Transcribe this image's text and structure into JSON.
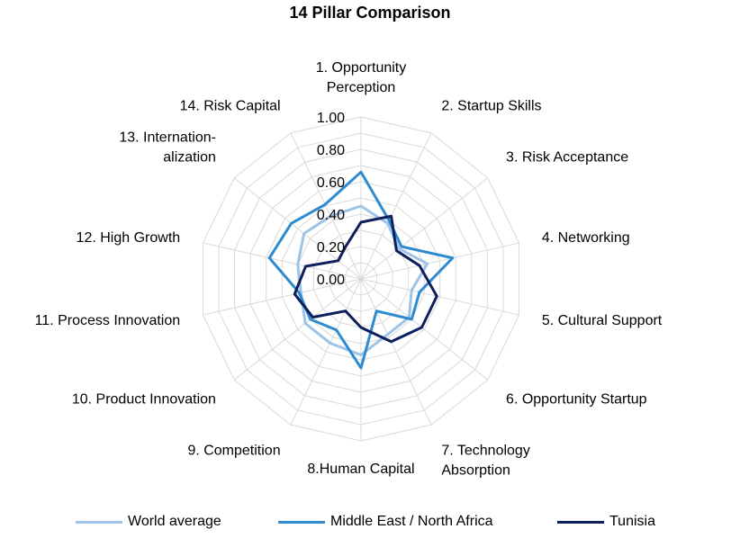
{
  "chart_data": {
    "type": "radar",
    "title": "14 Pillar Comparison",
    "axes": [
      "1. Opportunity Perception",
      "2. Startup Skills",
      "3. Risk Acceptance",
      "4. Networking",
      "5. Cultural Support",
      "6. Opportunity Startup",
      "7. Technology Absorption",
      "8.Human Capital",
      "9. Competition",
      "10. Product Innovation",
      "11. Process Innovation",
      "12. High Growth",
      "13. Internationalization",
      "14. Risk Capital"
    ],
    "axis_label_lines": [
      [
        "1. Opportunity",
        "Perception"
      ],
      [
        "2. Startup Skills"
      ],
      [
        "3. Risk Acceptance"
      ],
      [
        "4. Networking"
      ],
      [
        "5. Cultural Support"
      ],
      [
        "6. Opportunity Startup"
      ],
      [
        "7. Technology",
        "Absorption"
      ],
      [
        "8.Human Capital"
      ],
      [
        "9. Competition"
      ],
      [
        "10. Product Innovation"
      ],
      [
        "11. Process Innovation"
      ],
      [
        "12. High Growth"
      ],
      [
        "13. Internation-",
        "alization"
      ],
      [
        "14. Risk Capital"
      ]
    ],
    "radial_ticks": [
      "0.00",
      "0.20",
      "0.40",
      "0.60",
      "0.80",
      "1.00"
    ],
    "rlim": [
      0,
      1
    ],
    "grid": true,
    "legend_position": "bottom",
    "series": [
      {
        "name": "World average",
        "color": "#9dc3e6",
        "values": [
          0.45,
          0.38,
          0.3,
          0.42,
          0.32,
          0.38,
          0.38,
          0.47,
          0.44,
          0.44,
          0.38,
          0.4,
          0.45,
          0.43
        ]
      },
      {
        "name": "Middle East / North Africa",
        "color": "#2e8bd0",
        "values": [
          0.66,
          0.4,
          0.32,
          0.58,
          0.37,
          0.4,
          0.22,
          0.55,
          0.35,
          0.4,
          0.39,
          0.58,
          0.55,
          0.51
        ]
      },
      {
        "name": "Tunisia",
        "color": "#0d1f5c",
        "values": [
          0.35,
          0.43,
          0.28,
          0.37,
          0.48,
          0.48,
          0.43,
          0.3,
          0.22,
          0.38,
          0.42,
          0.35,
          0.18,
          0.22
        ]
      }
    ]
  }
}
